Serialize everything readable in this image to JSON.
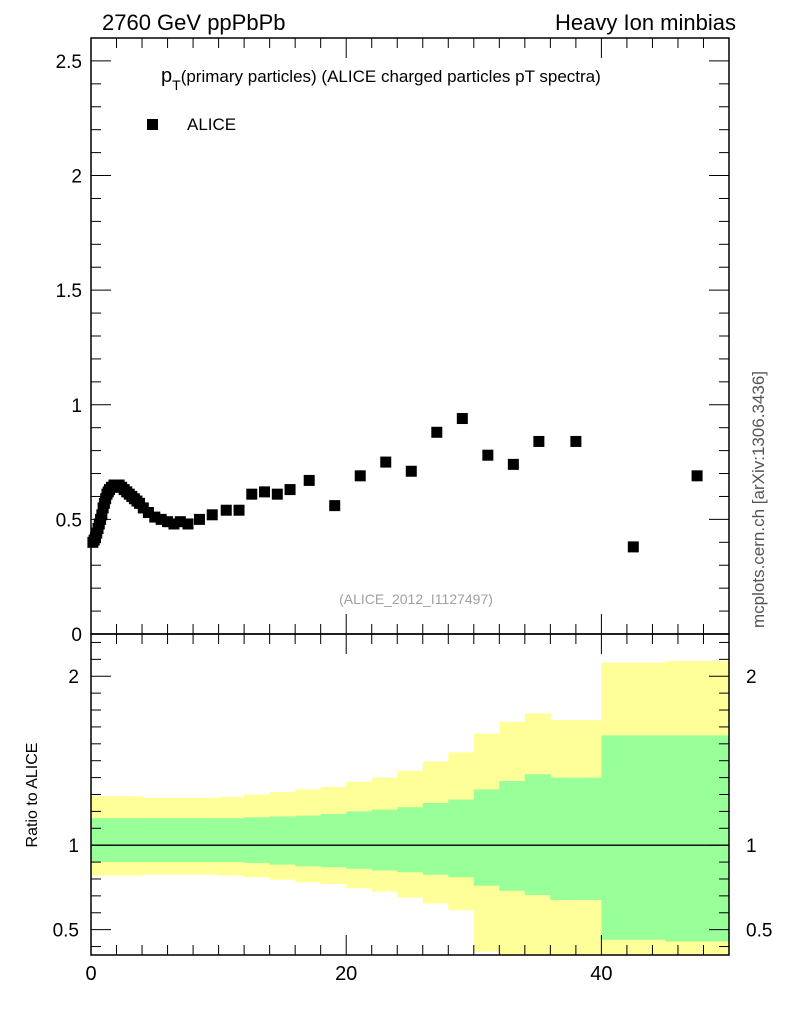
{
  "header": {
    "left": "2760 GeV ppPbPb",
    "right": "Heavy Ion minbias",
    "side": "mcplots.cern.ch [arXiv:1306.3436]"
  },
  "chart_data": [
    {
      "type": "scatter",
      "title_main": "p",
      "title_sub": "T",
      "title_rest": "(primary particles) (ALICE charged particles pT spectra)",
      "legend": [
        "ALICE"
      ],
      "analysis": "(ALICE_2012_I1127497)",
      "xlim": [
        0,
        50
      ],
      "ylim": [
        0,
        2.6
      ],
      "yticks": [
        0.5,
        1,
        1.5,
        2,
        2.5
      ],
      "ytick_labels": [
        "0.5",
        "1",
        "1.5",
        "2",
        "2.5"
      ],
      "y_bottom_label": "0",
      "series": [
        {
          "name": "ALICE",
          "x": [
            0.15,
            0.25,
            0.35,
            0.45,
            0.55,
            0.65,
            0.75,
            0.85,
            0.95,
            1.05,
            1.15,
            1.25,
            1.35,
            1.45,
            1.6,
            1.8,
            2.0,
            2.2,
            2.4,
            2.6,
            2.8,
            3.0,
            3.2,
            3.4,
            3.6,
            3.8,
            4.1,
            4.5,
            5.0,
            5.5,
            6.0,
            6.5,
            7.0,
            7.6,
            8.5,
            9.5,
            10.6,
            11.6,
            12.6,
            13.6,
            14.6,
            15.6,
            17.1,
            19.1,
            21.1,
            23.1,
            25.1,
            27.1,
            29.1,
            31.1,
            33.1,
            35.1,
            38.0,
            42.5,
            47.5
          ],
          "values": [
            0.4,
            0.41,
            0.42,
            0.44,
            0.46,
            0.48,
            0.5,
            0.52,
            0.55,
            0.57,
            0.59,
            0.61,
            0.62,
            0.63,
            0.64,
            0.65,
            0.65,
            0.65,
            0.64,
            0.63,
            0.62,
            0.61,
            0.6,
            0.59,
            0.58,
            0.57,
            0.55,
            0.53,
            0.51,
            0.5,
            0.49,
            0.48,
            0.49,
            0.48,
            0.5,
            0.52,
            0.54,
            0.54,
            0.61,
            0.62,
            0.61,
            0.63,
            0.67,
            0.56,
            0.69,
            0.75,
            0.71,
            0.88,
            0.94,
            0.78,
            0.74,
            0.84,
            0.84,
            0.38,
            0.69
          ]
        }
      ]
    },
    {
      "type": "area",
      "ylabel": "Ratio to ALICE",
      "xlim": [
        0,
        50
      ],
      "ylim": [
        0.35,
        2.25
      ],
      "xticks": [
        0,
        20,
        40
      ],
      "xtick_labels": [
        "0",
        "20",
        "40"
      ],
      "yticks": [
        0.5,
        1,
        2
      ],
      "ytick_labels": [
        "0.5",
        "1",
        "2"
      ],
      "reference_line": 1,
      "bins": [
        0,
        2,
        4,
        6,
        8,
        10,
        12,
        14,
        16,
        18,
        20,
        22,
        24,
        26,
        28,
        30,
        32,
        34,
        36,
        40,
        45,
        50
      ],
      "series": [
        {
          "name": "stat+sys band",
          "color": "#ffff99",
          "lower": [
            0.82,
            0.82,
            0.825,
            0.825,
            0.825,
            0.82,
            0.81,
            0.795,
            0.78,
            0.77,
            0.745,
            0.725,
            0.69,
            0.655,
            0.615,
            0.37,
            0.35,
            0.35,
            0.35,
            0.35,
            0.35
          ],
          "upper": [
            1.29,
            1.29,
            1.28,
            1.28,
            1.28,
            1.285,
            1.3,
            1.315,
            1.33,
            1.345,
            1.375,
            1.4,
            1.44,
            1.495,
            1.55,
            1.66,
            1.73,
            1.78,
            1.74,
            2.08,
            2.09
          ]
        },
        {
          "name": "stat band",
          "color": "#99ff99",
          "lower": [
            0.9,
            0.9,
            0.9,
            0.9,
            0.9,
            0.9,
            0.895,
            0.885,
            0.875,
            0.87,
            0.86,
            0.85,
            0.84,
            0.825,
            0.81,
            0.76,
            0.73,
            0.705,
            0.675,
            0.44,
            0.43
          ],
          "upper": [
            1.16,
            1.16,
            1.16,
            1.16,
            1.16,
            1.16,
            1.165,
            1.17,
            1.175,
            1.185,
            1.2,
            1.21,
            1.225,
            1.25,
            1.27,
            1.33,
            1.38,
            1.42,
            1.4,
            1.65,
            1.65
          ]
        }
      ]
    }
  ]
}
